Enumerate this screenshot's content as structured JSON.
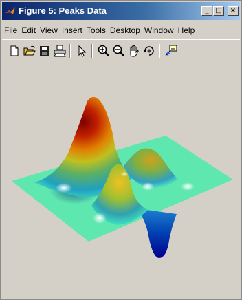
{
  "window": {
    "title": "Figure 5: Peaks Data",
    "controls": {
      "minimize": "_",
      "maximize": "□",
      "close": "×"
    }
  },
  "menubar": {
    "items": [
      "File",
      "Edit",
      "View",
      "Insert",
      "Tools",
      "Desktop",
      "Window",
      "Help"
    ]
  },
  "toolbar": {
    "tools": [
      {
        "name": "new-figure-icon"
      },
      {
        "name": "open-file-icon"
      },
      {
        "name": "save-icon"
      },
      {
        "name": "print-icon"
      },
      {
        "name": "edit-plot-arrow-icon"
      },
      {
        "name": "zoom-in-icon"
      },
      {
        "name": "zoom-out-icon"
      },
      {
        "name": "pan-hand-icon"
      },
      {
        "name": "rotate-3d-icon"
      },
      {
        "name": "data-cursor-icon"
      }
    ]
  },
  "figure": {
    "content": "3-D peaks surface plot",
    "colormap": [
      "#00008f",
      "#0080ff",
      "#40e0c0",
      "#c0ff40",
      "#ffc000",
      "#c02000",
      "#800000"
    ],
    "floor_color": "#5ee8b0"
  }
}
